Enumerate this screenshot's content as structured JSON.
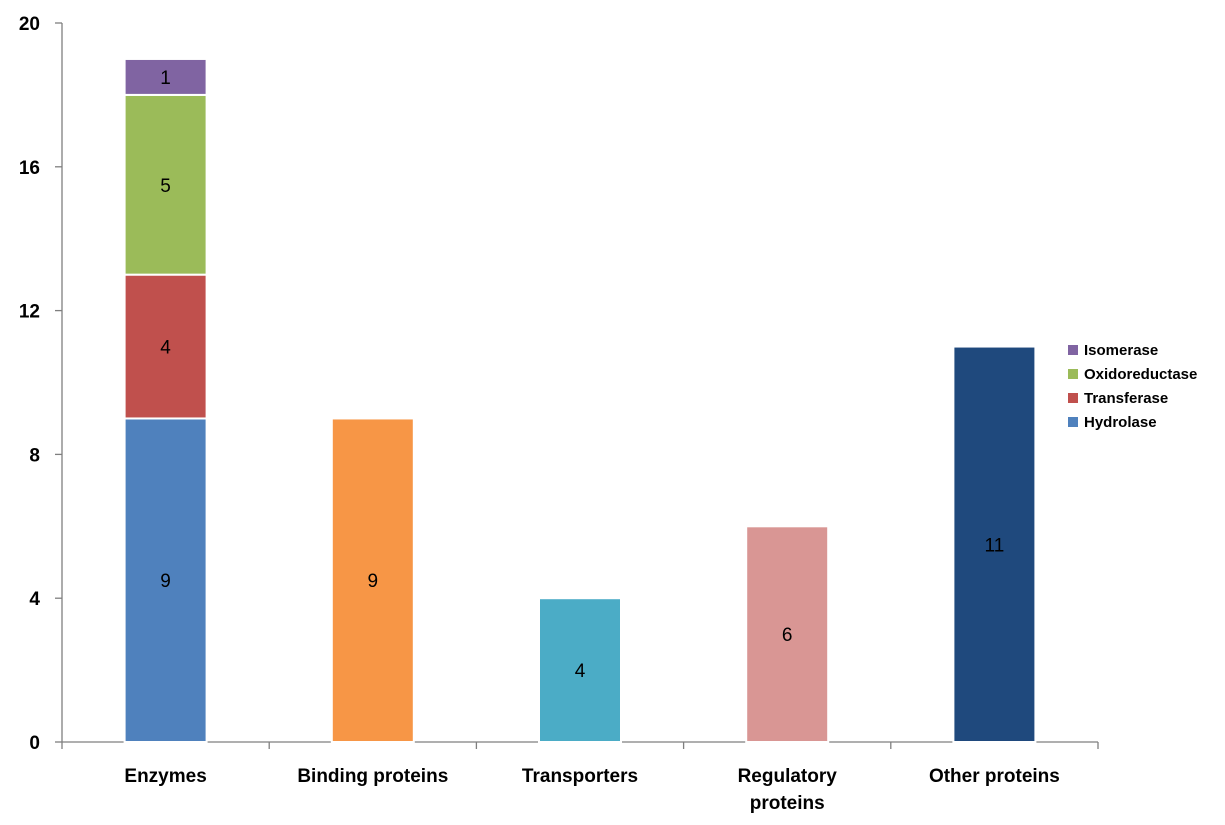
{
  "chart_data": {
    "type": "bar",
    "stacked": true,
    "categories": [
      [
        "Enzymes"
      ],
      [
        "Binding proteins"
      ],
      [
        "Transporters"
      ],
      [
        "Regulatory",
        "proteins"
      ],
      [
        "Other proteins"
      ]
    ],
    "stack_series": [
      {
        "name": "Hydrolase",
        "color": "#4F81BD",
        "values": [
          9,
          null,
          null,
          null,
          null
        ]
      },
      {
        "name": "Transferase",
        "color": "#C0504D",
        "values": [
          4,
          null,
          null,
          null,
          null
        ]
      },
      {
        "name": "Oxidoreductase",
        "color": "#9BBB59",
        "values": [
          5,
          null,
          null,
          null,
          null
        ]
      },
      {
        "name": "Isomerase",
        "color": "#8064A2",
        "values": [
          1,
          null,
          null,
          null,
          null
        ]
      }
    ],
    "single_bars": [
      {
        "category_index": 1,
        "value": 9,
        "color": "#F79646"
      },
      {
        "category_index": 2,
        "value": 4,
        "color": "#4BACC6"
      },
      {
        "category_index": 3,
        "value": 6,
        "color": "#D99694"
      },
      {
        "category_index": 4,
        "value": 11,
        "color": "#1F497D"
      }
    ],
    "legend": {
      "placement": "right",
      "entries": [
        {
          "name": "Isomerase",
          "color": "#8064A2"
        },
        {
          "name": "Oxidoreductase",
          "color": "#9BBB59"
        },
        {
          "name": "Transferase",
          "color": "#C0504D"
        },
        {
          "name": "Hydrolase",
          "color": "#4F81BD"
        }
      ]
    },
    "y_ticks": [
      0,
      4,
      8,
      12,
      16,
      20
    ],
    "ylim": [
      0,
      20
    ],
    "title": "",
    "xlabel": "",
    "ylabel": "",
    "grid": false,
    "data_labels": true
  }
}
